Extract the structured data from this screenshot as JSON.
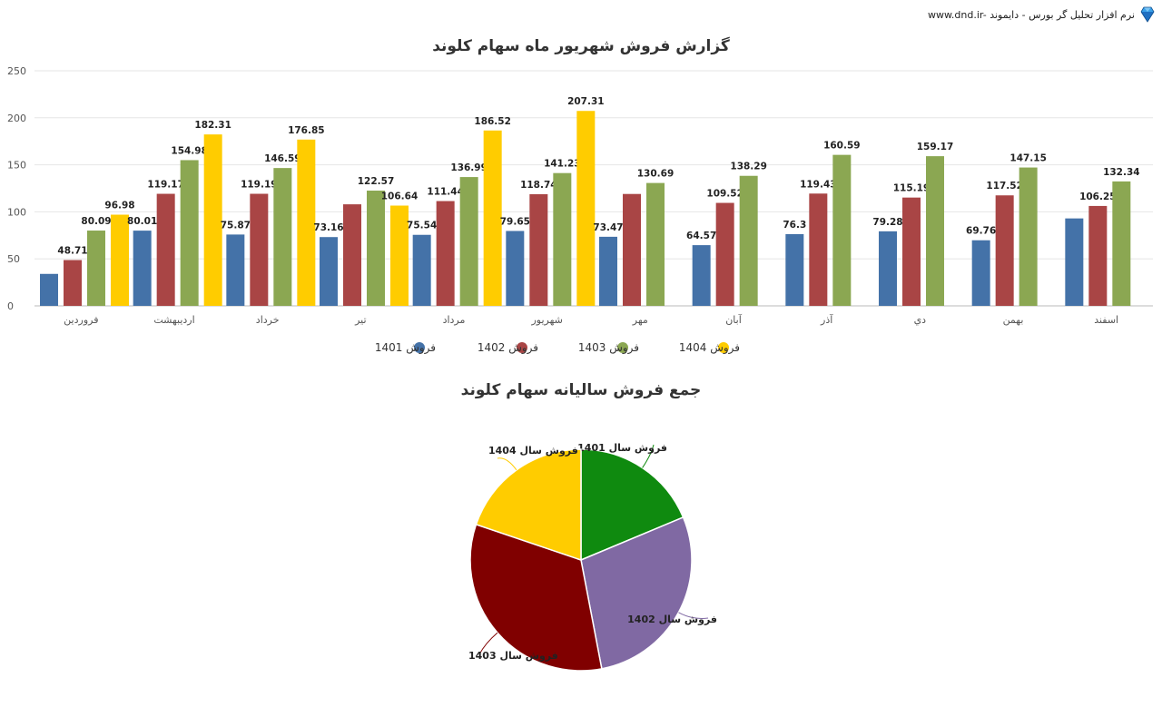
{
  "brand": {
    "text": "www.dnd.ir- نرم افزار تحلیل گر بورس - دایموند",
    "icon": "diamond-icon"
  },
  "chart_data": [
    {
      "type": "bar",
      "title": "گزارش فروش شهریور ماه سهام کلوند",
      "ylim": [
        0,
        250
      ],
      "yticks": [
        0,
        50,
        100,
        150,
        200,
        250
      ],
      "grid": true,
      "legend_position": "bottom",
      "categories": [
        "فروردین",
        "اردیبهشت",
        "خرداد",
        "تیر",
        "مرداد",
        "شهریور",
        "مهر",
        "آبان",
        "آذر",
        "دي",
        "بهمن",
        "اسفند"
      ],
      "series": [
        {
          "name": "فروش 1401",
          "color": "#4472a8",
          "values": [
            34,
            80.01,
            75.87,
            73.16,
            75.54,
            79.65,
            73.47,
            64.57,
            76.3,
            79.28,
            69.76,
            93
          ],
          "labels": [
            null,
            "80.01",
            "75.87",
            "73.16",
            "75.54",
            "79.65",
            "73.47",
            "64.57",
            "76.3",
            "79.28",
            "69.76",
            null
          ]
        },
        {
          "name": "فروش 1402",
          "color": "#a94545",
          "values": [
            48.71,
            119.17,
            119.19,
            108,
            111.44,
            118.74,
            119,
            109.52,
            119.43,
            115.19,
            117.52,
            106.25
          ],
          "labels": [
            "48.71",
            "119.17",
            "119.19",
            null,
            "111.44",
            "118.74",
            null,
            "109.52",
            "119.43",
            "115.19",
            "117.52",
            "106.25"
          ]
        },
        {
          "name": "فروش 1403",
          "color": "#8ba752",
          "values": [
            80.09,
            154.98,
            146.59,
            122.57,
            136.99,
            141.23,
            130.69,
            138.29,
            160.59,
            159.17,
            147.15,
            132.34
          ],
          "labels": [
            "80.09",
            "154.98",
            "146.59",
            "122.57",
            "136.99",
            "141.23",
            "130.69",
            "138.29",
            "160.59",
            "159.17",
            "147.15",
            "132.34"
          ]
        },
        {
          "name": "فروش 1404",
          "color": "#ffcc00",
          "values": [
            96.98,
            182.31,
            176.85,
            106.64,
            186.52,
            207.31,
            null,
            null,
            null,
            null,
            null,
            null
          ],
          "labels": [
            "96.98",
            "182.31",
            "176.85",
            "106.64",
            "186.52",
            "207.31",
            null,
            null,
            null,
            null,
            null,
            null
          ]
        }
      ]
    },
    {
      "type": "pie",
      "title": "جمع فروش سالیانه سهام کلوند",
      "slices": [
        {
          "label": "فروش سال 1401",
          "value": 18.7,
          "color": "#0f8a0f"
        },
        {
          "label": "فروش سال 1402",
          "value": 28.3,
          "color": "#8069a3"
        },
        {
          "label": "فروش سال 1403",
          "value": 33.2,
          "color": "#800000"
        },
        {
          "label": "فروش سال 1404",
          "value": 19.8,
          "color": "#ffcc00"
        }
      ]
    }
  ]
}
